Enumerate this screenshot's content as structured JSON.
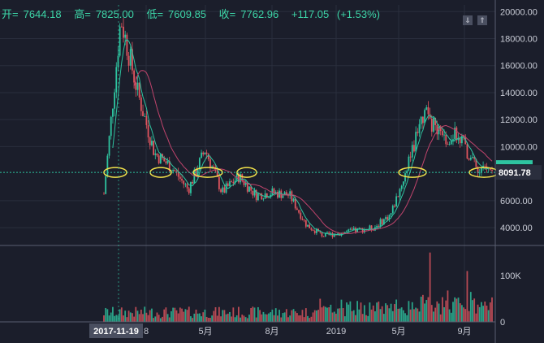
{
  "ohlc": {
    "open_label": "开=",
    "open": "7644.18",
    "high_label": "高=",
    "high": "7825.00",
    "low_label": "低=",
    "low": "7609.85",
    "close_label": "收=",
    "close": "7762.96",
    "change": "+117.05",
    "change_pct": "(+1.53%)"
  },
  "toolbar": {
    "settings_icon": "settings-icon",
    "fullscreen_icon": "fullscreen-icon"
  },
  "colors": {
    "up": "#2ec4a0",
    "down": "#e0555f",
    "ma_red": "#c0446c",
    "ma_green": "#2ec4a0",
    "marker": "#f2e24a",
    "crosshair": "#2ec4a0",
    "bg": "#1b1e2b",
    "grid": "#2a2e3d",
    "text": "#c9ccd6"
  },
  "price_axis": {
    "ticks": [
      "20000.00",
      "18000.00",
      "16000.00",
      "14000.00",
      "12000.00",
      "10000.00",
      "6000.00",
      "4000.00"
    ]
  },
  "price_label": "8091.78",
  "volume_axis": {
    "ticks": [
      "100K",
      "0"
    ]
  },
  "time_axis": {
    "ticks": [
      "8",
      "5月",
      "8月",
      "2019",
      "5月",
      "9月"
    ],
    "crosshair_date": "2017-11-19"
  },
  "chart_data": {
    "type": "candlestick",
    "title": "",
    "price_range": [
      2800,
      20500
    ],
    "volume_range": [
      0,
      160000
    ],
    "price_path": [
      [
        "2017-11",
        6500
      ],
      [
        "2017-12",
        19500
      ],
      [
        "2018-01",
        14000
      ],
      [
        "2018-02",
        9500
      ],
      [
        "2018-03",
        8500
      ],
      [
        "2018-04",
        6800
      ],
      [
        "2018-05",
        9800
      ],
      [
        "2018-06",
        6600
      ],
      [
        "2018-07",
        7800
      ],
      [
        "2018-08",
        6400
      ],
      [
        "2018-09",
        6600
      ],
      [
        "2018-10",
        6400
      ],
      [
        "2018-11",
        4200
      ],
      [
        "2018-12",
        3400
      ],
      [
        "2019-01",
        3600
      ],
      [
        "2019-02",
        3800
      ],
      [
        "2019-03",
        4000
      ],
      [
        "2019-04",
        5000
      ],
      [
        "2019-05",
        8500
      ],
      [
        "2019-06",
        12800
      ],
      [
        "2019-07",
        10500
      ],
      [
        "2019-08",
        11000
      ],
      [
        "2019-09",
        8500
      ],
      [
        "2019-10",
        8100
      ]
    ],
    "horizontal_line": 8091.78
  }
}
